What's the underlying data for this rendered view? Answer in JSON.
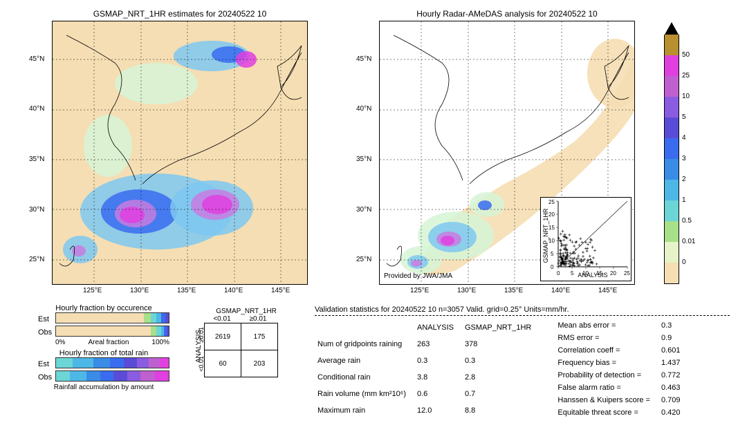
{
  "map_left": {
    "title": "GSMAP_NRT_1HR estimates for 20240522 10",
    "x_ticks": [
      "125°E",
      "130°E",
      "135°E",
      "140°E",
      "145°E"
    ],
    "y_ticks": [
      "25°N",
      "30°N",
      "35°N",
      "40°N",
      "45°N"
    ],
    "xlim": [
      120,
      150
    ],
    "ylim": [
      22,
      48
    ],
    "bg_color": "#f5deb3"
  },
  "map_right": {
    "title": "Hourly Radar-AMeDAS analysis for 20240522 10",
    "x_ticks": [
      "125°E",
      "130°E",
      "135°E",
      "140°E",
      "145°E"
    ],
    "y_ticks": [
      "25°N",
      "30°N",
      "35°N",
      "40°N",
      "45°N"
    ],
    "xlim": [
      120,
      150
    ],
    "ylim": [
      22,
      48
    ],
    "bg_color": "#ffffff",
    "provider": "Provided by JWA/JMA",
    "inset": {
      "xlabel": "ANALYSIS",
      "ylabel": "GSMAP_NRT_1HR",
      "xlim": [
        0,
        25
      ],
      "ylim": [
        0,
        25
      ],
      "xticks": [
        0,
        5,
        10,
        15,
        20,
        25
      ],
      "yticks": [
        0,
        5,
        10,
        15,
        20,
        25
      ]
    }
  },
  "colorbar": {
    "labels": [
      "0",
      "0.01",
      "0.5",
      "1",
      "2",
      "3",
      "4",
      "5",
      "10",
      "25",
      "50"
    ],
    "colors": [
      "#f5deb3",
      "#e6f2c8",
      "#a8e08a",
      "#6cd6d6",
      "#4db8e6",
      "#3a8ce6",
      "#3a6cf0",
      "#5a4cd6",
      "#8a5ce0",
      "#c060d0",
      "#e040e0",
      "#b89030"
    ],
    "arrow_color": "#000000"
  },
  "fraction_panels": {
    "occ_title": "Hourly fraction by occurence",
    "rain_title": "Hourly fraction of total rain",
    "footer": "Rainfall accumulation by amount",
    "row_labels": [
      "Est",
      "Obs"
    ],
    "areal_label": "Areal fraction",
    "pct0": "0%",
    "pct100": "100%",
    "occ_colors_est": [
      [
        "#f5deb3",
        0.78
      ],
      [
        "#a8e08a",
        0.06
      ],
      [
        "#6cd6d6",
        0.05
      ],
      [
        "#4db8e6",
        0.04
      ],
      [
        "#3a6cf0",
        0.04
      ],
      [
        "#5a4cd6",
        0.03
      ]
    ],
    "occ_colors_obs": [
      [
        "#f5deb3",
        0.84
      ],
      [
        "#a8e08a",
        0.05
      ],
      [
        "#6cd6d6",
        0.04
      ],
      [
        "#4db8e6",
        0.03
      ],
      [
        "#3a6cf0",
        0.02
      ],
      [
        "#5a4cd6",
        0.02
      ]
    ],
    "rain_colors_est": [
      [
        "#6cd6d6",
        0.15
      ],
      [
        "#4db8e6",
        0.18
      ],
      [
        "#3a8ce6",
        0.15
      ],
      [
        "#3a6cf0",
        0.12
      ],
      [
        "#5a4cd6",
        0.12
      ],
      [
        "#8a5ce0",
        0.1
      ],
      [
        "#c060d0",
        0.1
      ],
      [
        "#e040e0",
        0.08
      ]
    ],
    "rain_colors_obs": [
      [
        "#6cd6d6",
        0.12
      ],
      [
        "#4db8e6",
        0.15
      ],
      [
        "#3a8ce6",
        0.12
      ],
      [
        "#3a6cf0",
        0.12
      ],
      [
        "#5a4cd6",
        0.12
      ],
      [
        "#8a5ce0",
        0.12
      ],
      [
        "#c060d0",
        0.13
      ],
      [
        "#e040e0",
        0.12
      ]
    ]
  },
  "contingency": {
    "col_header": "GSMAP_NRT_1HR",
    "row_header": "ANALYSIS",
    "col_labels": [
      "<0.01",
      "≥0.01"
    ],
    "row_labels": [
      "≥0.01",
      "<0.01"
    ],
    "cells": [
      [
        "2619",
        "175"
      ],
      [
        "60",
        "203"
      ]
    ]
  },
  "validation": {
    "title": "Validation statistics for 20240522 10  n=3057 Valid. grid=0.25° Units=mm/hr.",
    "col_headers": [
      "",
      "ANALYSIS",
      "GSMAP_NRT_1HR"
    ],
    "rows": [
      [
        "Num of gridpoints raining",
        "263",
        "378"
      ],
      [
        "Average rain",
        "0.3",
        "0.3"
      ],
      [
        "Conditional rain",
        "3.8",
        "2.8"
      ],
      [
        "Rain volume (mm km²10⁶)",
        "0.6",
        "0.7"
      ],
      [
        "Maximum rain",
        "12.0",
        "8.8"
      ]
    ],
    "metrics": [
      [
        "Mean abs error =",
        "0.3"
      ],
      [
        "RMS error =",
        "0.9"
      ],
      [
        "Correlation coeff =",
        "0.601"
      ],
      [
        "Frequency bias =",
        "1.437"
      ],
      [
        "Probability of detection =",
        "0.772"
      ],
      [
        "False alarm ratio =",
        "0.463"
      ],
      [
        "Hanssen & Kuipers score =",
        "0.709"
      ],
      [
        "Equitable threat score =",
        "0.420"
      ]
    ]
  }
}
